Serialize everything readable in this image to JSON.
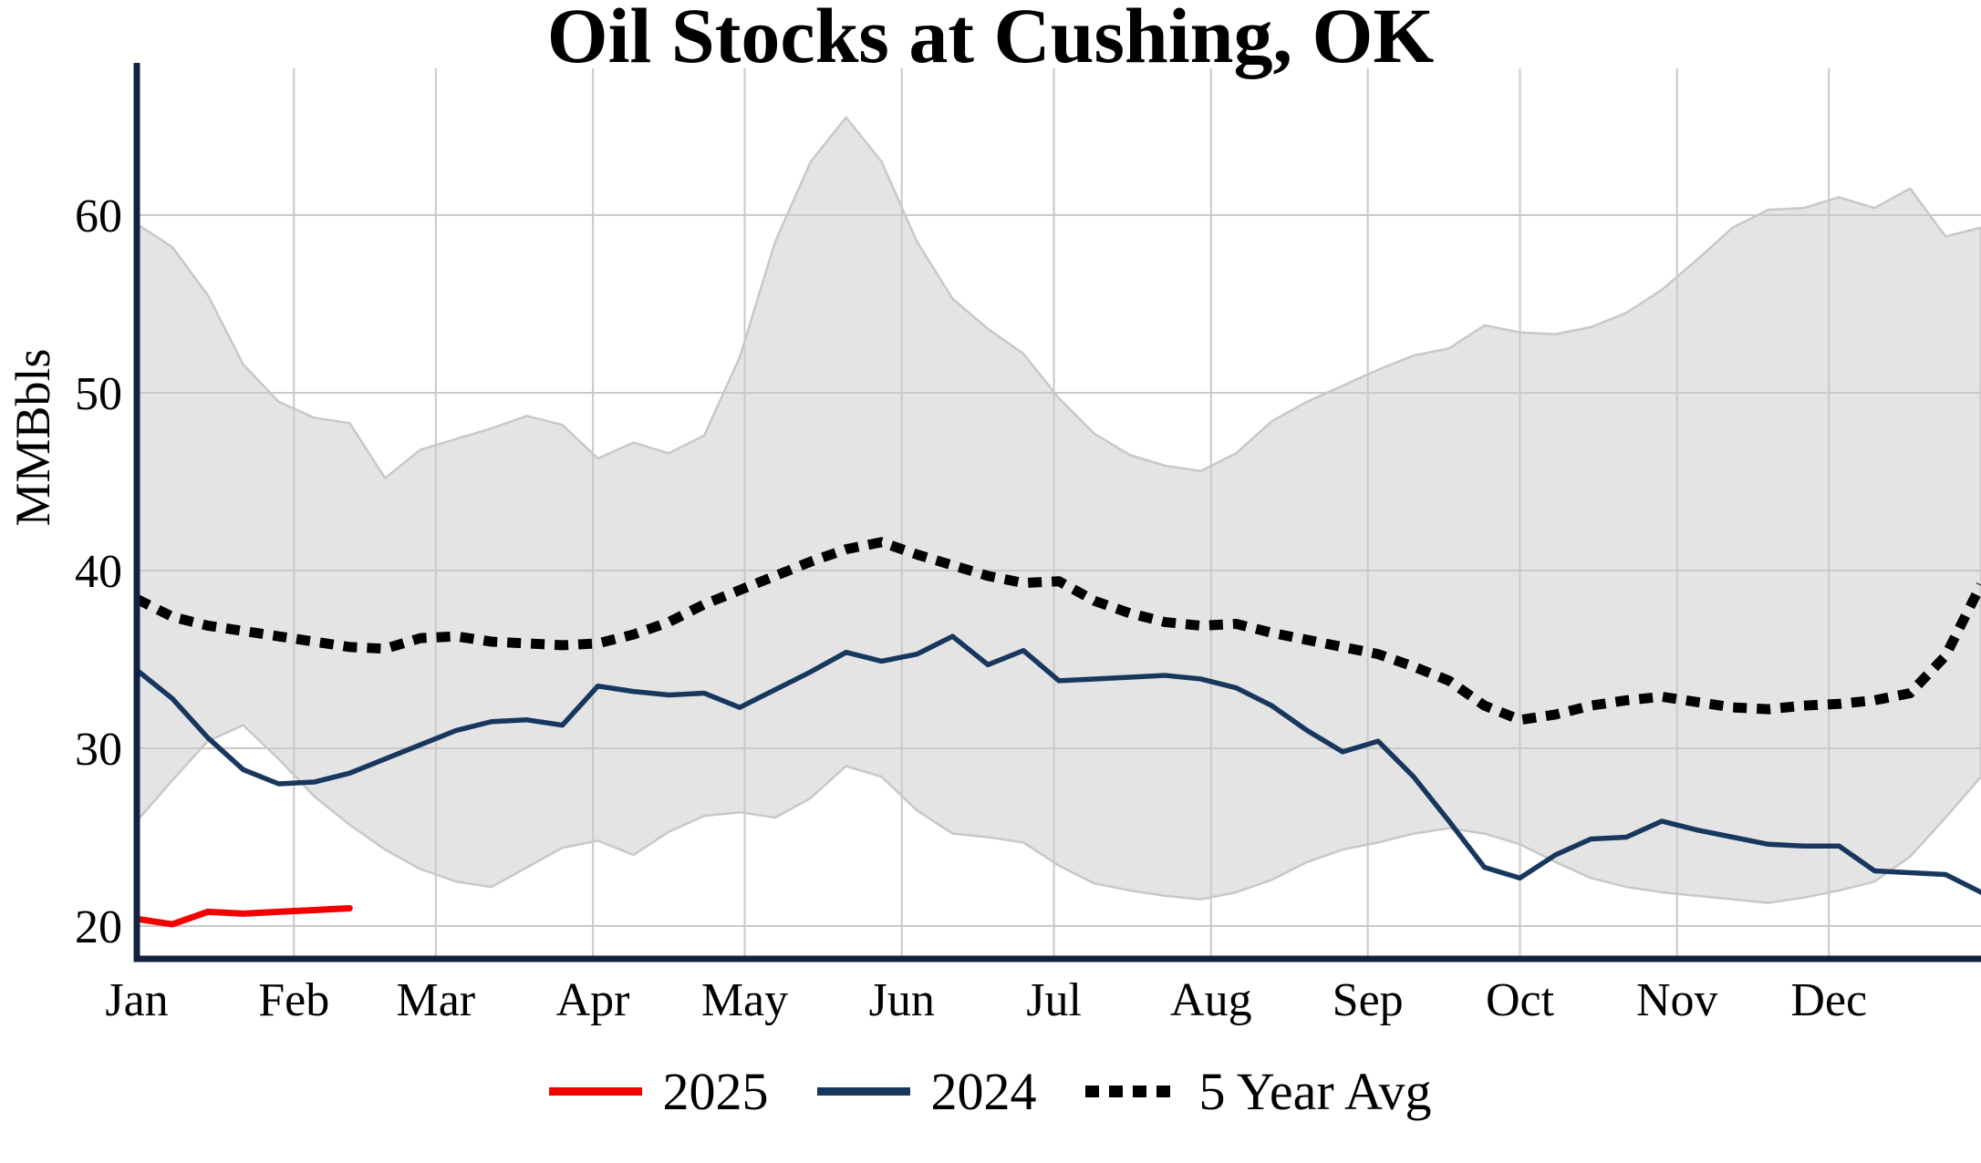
{
  "title": "Oil Stocks at Cushing, OK",
  "legend": {
    "items": [
      {
        "label": "2025",
        "color": "#f40000",
        "line_style": "solid"
      },
      {
        "label": "2024",
        "color": "#17375e",
        "line_style": "solid"
      },
      {
        "label": "5 Year Avg",
        "color": "#000000",
        "line_style": "dashed"
      }
    ]
  },
  "chart_data": {
    "type": "line",
    "title": "Oil Stocks at Cushing, OK",
    "ylabel": "MMBbls",
    "x_unit": "week of year (0-52)",
    "x_tick_labels": [
      "Jan",
      "Feb",
      "Mar",
      "Apr",
      "May",
      "Jun",
      "Jul",
      "Aug",
      "Sep",
      "Oct",
      "Nov",
      "Dec"
    ],
    "month_start_weeks": [
      0,
      4.43,
      8.43,
      12.86,
      17.14,
      21.57,
      25.86,
      30.29,
      34.71,
      39.0,
      43.43,
      47.71
    ],
    "y_ticks": [
      20,
      30,
      40,
      50,
      60
    ],
    "ylim": [
      18.2,
      67.6
    ],
    "grid": true,
    "legend_position": "bottom center",
    "colors": {
      "band": "#e4e4e4",
      "band_edge": "#c8c8c8",
      "grid": "#c9c9c9",
      "axis": "#112240",
      "y2025": "#f40000",
      "y2024": "#17375e",
      "avg": "#000000"
    },
    "band": {
      "name": "5-year range (shaded)",
      "upper": [
        59.5,
        58.2,
        55.5,
        51.6,
        49.5,
        48.6,
        48.3,
        45.2,
        46.8,
        47.4,
        48.0,
        48.7,
        48.2,
        46.3,
        47.2,
        46.6,
        47.6,
        52.0,
        58.5,
        63.0,
        65.5,
        63.0,
        58.5,
        55.3,
        53.6,
        52.2,
        49.7,
        47.7,
        46.5,
        45.9,
        45.6,
        46.6,
        48.4,
        49.5,
        50.4,
        51.3,
        52.1,
        52.5,
        53.8,
        53.4,
        53.3,
        53.7,
        54.5,
        55.8,
        57.5,
        59.3,
        60.3,
        60.4,
        61.0,
        60.4,
        61.5,
        58.8,
        59.3
      ],
      "lower": [
        25.9,
        28.2,
        30.4,
        31.3,
        29.4,
        27.3,
        25.7,
        24.3,
        23.2,
        22.5,
        22.2,
        23.3,
        24.4,
        24.8,
        24.0,
        25.3,
        26.2,
        26.4,
        26.1,
        27.2,
        29.0,
        28.4,
        26.5,
        25.2,
        25.0,
        24.7,
        23.4,
        22.4,
        22.0,
        21.7,
        21.5,
        21.9,
        22.6,
        23.6,
        24.3,
        24.7,
        25.2,
        25.5,
        25.2,
        24.6,
        23.6,
        22.7,
        22.2,
        21.9,
        21.7,
        21.5,
        21.3,
        21.6,
        22.0,
        22.5,
        23.9,
        26.1,
        28.4
      ]
    },
    "series": [
      {
        "name": "2025",
        "color": "#f40000",
        "style": "solid",
        "x_start_week": 0,
        "values": [
          20.4,
          20.1,
          20.8,
          20.7,
          20.8,
          20.9,
          21.0
        ]
      },
      {
        "name": "2024",
        "color": "#17375e",
        "style": "solid",
        "x_start_week": 0,
        "values": [
          34.4,
          32.8,
          30.6,
          28.8,
          28.0,
          28.1,
          28.6,
          29.4,
          30.2,
          31.0,
          31.5,
          31.6,
          31.3,
          33.5,
          33.2,
          33.0,
          33.1,
          32.3,
          33.3,
          34.3,
          35.4,
          34.9,
          35.3,
          36.3,
          34.7,
          35.5,
          33.8,
          33.9,
          34.0,
          34.1,
          33.9,
          33.4,
          32.4,
          31.0,
          29.8,
          30.4,
          28.4,
          25.9,
          23.3,
          22.7,
          24.0,
          24.9,
          25.0,
          25.9,
          25.4,
          25.0,
          24.6,
          24.5,
          24.5,
          23.1,
          23.0,
          22.9,
          21.9
        ]
      },
      {
        "name": "5 Year Avg",
        "color": "#000000",
        "style": "dashed",
        "x_start_week": 0,
        "values": [
          38.4,
          37.4,
          36.9,
          36.6,
          36.3,
          36.0,
          35.7,
          35.6,
          36.2,
          36.3,
          36.0,
          35.9,
          35.8,
          35.9,
          36.4,
          37.1,
          38.1,
          38.9,
          39.7,
          40.5,
          41.2,
          41.6,
          40.9,
          40.3,
          39.7,
          39.3,
          39.4,
          38.3,
          37.6,
          37.1,
          36.9,
          37.0,
          36.5,
          36.1,
          35.7,
          35.3,
          34.6,
          33.8,
          32.4,
          31.6,
          31.9,
          32.4,
          32.7,
          32.9,
          32.6,
          32.3,
          32.2,
          32.4,
          32.5,
          32.7,
          33.1,
          35.2,
          39.2
        ]
      }
    ]
  }
}
